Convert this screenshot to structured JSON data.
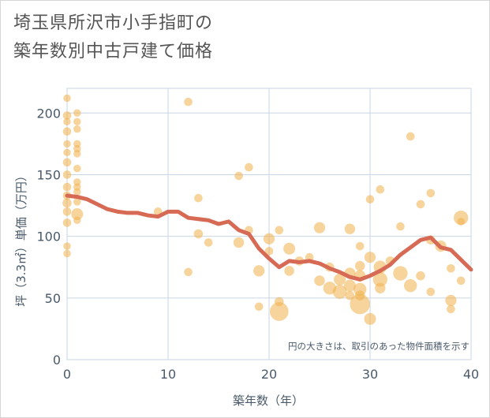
{
  "title": {
    "line1": "埼玉県所沢市小手指町の",
    "line2": "築年数別中古戸建て価格"
  },
  "chart_data": {
    "type": "scatter",
    "xlabel": "築年数（年）",
    "ylabel": "坪（3.3㎡）単価（万円）",
    "xlim": [
      0,
      40
    ],
    "ylim": [
      0,
      220
    ],
    "xticks": [
      "0",
      "10",
      "20",
      "30",
      "40"
    ],
    "yticks": [
      "0",
      "50",
      "100",
      "150",
      "200"
    ],
    "grid": true,
    "note": "円の大きさは、取引のあった物件面積を示す",
    "colors": {
      "bubble": "#F0B04A",
      "trend": "#D66A55",
      "grid": "#c9d6e3",
      "axis_text": "#4a5a6a"
    },
    "bubbles": [
      {
        "x": 0,
        "y": 212,
        "s": 0.4
      },
      {
        "x": 0,
        "y": 198,
        "s": 0.5
      },
      {
        "x": 0,
        "y": 193,
        "s": 0.4
      },
      {
        "x": 0,
        "y": 185,
        "s": 0.5
      },
      {
        "x": 0,
        "y": 175,
        "s": 0.4
      },
      {
        "x": 0,
        "y": 168,
        "s": 0.4
      },
      {
        "x": 0,
        "y": 160,
        "s": 0.5
      },
      {
        "x": 0,
        "y": 150,
        "s": 0.5
      },
      {
        "x": 0,
        "y": 140,
        "s": 0.5
      },
      {
        "x": 0,
        "y": 133,
        "s": 0.5
      },
      {
        "x": 0,
        "y": 127,
        "s": 0.6
      },
      {
        "x": 0,
        "y": 120,
        "s": 0.5
      },
      {
        "x": 0,
        "y": 111,
        "s": 0.5
      },
      {
        "x": 0,
        "y": 92,
        "s": 0.4
      },
      {
        "x": 0,
        "y": 86,
        "s": 0.4
      },
      {
        "x": 1,
        "y": 200,
        "s": 0.4
      },
      {
        "x": 1,
        "y": 193,
        "s": 0.4
      },
      {
        "x": 1,
        "y": 187,
        "s": 0.4
      },
      {
        "x": 1,
        "y": 175,
        "s": 0.4
      },
      {
        "x": 1,
        "y": 171,
        "s": 0.4
      },
      {
        "x": 1,
        "y": 167,
        "s": 0.4
      },
      {
        "x": 1,
        "y": 155,
        "s": 0.4
      },
      {
        "x": 1,
        "y": 144,
        "s": 0.4
      },
      {
        "x": 1,
        "y": 140,
        "s": 0.4
      },
      {
        "x": 1,
        "y": 136,
        "s": 0.4
      },
      {
        "x": 1,
        "y": 128,
        "s": 0.4
      },
      {
        "x": 1,
        "y": 118,
        "s": 1.0
      },
      {
        "x": 1,
        "y": 113,
        "s": 0.4
      },
      {
        "x": 9,
        "y": 120,
        "s": 0.5
      },
      {
        "x": 12,
        "y": 209,
        "s": 0.5
      },
      {
        "x": 12,
        "y": 71,
        "s": 0.5
      },
      {
        "x": 13,
        "y": 131,
        "s": 0.5
      },
      {
        "x": 13,
        "y": 102,
        "s": 0.6
      },
      {
        "x": 14,
        "y": 95,
        "s": 0.5
      },
      {
        "x": 17,
        "y": 149,
        "s": 0.5
      },
      {
        "x": 17,
        "y": 95,
        "s": 0.8
      },
      {
        "x": 18,
        "y": 156,
        "s": 0.5
      },
      {
        "x": 18,
        "y": 105,
        "s": 0.5
      },
      {
        "x": 19,
        "y": 72,
        "s": 0.9
      },
      {
        "x": 19,
        "y": 43,
        "s": 0.5
      },
      {
        "x": 20,
        "y": 98,
        "s": 0.9
      },
      {
        "x": 20,
        "y": 88,
        "s": 0.5
      },
      {
        "x": 21,
        "y": 105,
        "s": 0.5
      },
      {
        "x": 21,
        "y": 47,
        "s": 0.6
      },
      {
        "x": 21,
        "y": 39,
        "s": 2.5
      },
      {
        "x": 22,
        "y": 90,
        "s": 1.0
      },
      {
        "x": 22,
        "y": 72,
        "s": 0.7
      },
      {
        "x": 23,
        "y": 80,
        "s": 0.6
      },
      {
        "x": 24,
        "y": 83,
        "s": 0.5
      },
      {
        "x": 25,
        "y": 107,
        "s": 0.9
      },
      {
        "x": 25,
        "y": 64,
        "s": 0.8
      },
      {
        "x": 26,
        "y": 75,
        "s": 0.6
      },
      {
        "x": 26,
        "y": 58,
        "s": 1.2
      },
      {
        "x": 27,
        "y": 65,
        "s": 1.0
      },
      {
        "x": 27,
        "y": 55,
        "s": 1.4
      },
      {
        "x": 28,
        "y": 106,
        "s": 0.8
      },
      {
        "x": 28,
        "y": 70,
        "s": 0.9
      },
      {
        "x": 28,
        "y": 60,
        "s": 1.0
      },
      {
        "x": 28,
        "y": 52,
        "s": 0.6
      },
      {
        "x": 29,
        "y": 76,
        "s": 0.7
      },
      {
        "x": 29,
        "y": 68,
        "s": 0.9
      },
      {
        "x": 29,
        "y": 57,
        "s": 1.2
      },
      {
        "x": 29,
        "y": 52,
        "s": 0.7
      },
      {
        "x": 29,
        "y": 92,
        "s": 0.5
      },
      {
        "x": 29,
        "y": 45,
        "s": 2.9
      },
      {
        "x": 30,
        "y": 130,
        "s": 0.5
      },
      {
        "x": 30,
        "y": 83,
        "s": 0.9
      },
      {
        "x": 30,
        "y": 33,
        "s": 1.0
      },
      {
        "x": 31,
        "y": 138,
        "s": 0.5
      },
      {
        "x": 31,
        "y": 75,
        "s": 1.2
      },
      {
        "x": 31,
        "y": 65,
        "s": 1.5
      },
      {
        "x": 31,
        "y": 58,
        "s": 0.8
      },
      {
        "x": 32,
        "y": 80,
        "s": 0.6
      },
      {
        "x": 33,
        "y": 108,
        "s": 0.5
      },
      {
        "x": 33,
        "y": 70,
        "s": 1.5
      },
      {
        "x": 34,
        "y": 181,
        "s": 0.5
      },
      {
        "x": 34,
        "y": 60,
        "s": 1.2
      },
      {
        "x": 35,
        "y": 126,
        "s": 0.5
      },
      {
        "x": 35,
        "y": 68,
        "s": 0.6
      },
      {
        "x": 36,
        "y": 135,
        "s": 0.5
      },
      {
        "x": 36,
        "y": 97,
        "s": 0.6
      },
      {
        "x": 36,
        "y": 55,
        "s": 0.5
      },
      {
        "x": 37,
        "y": 92,
        "s": 0.9
      },
      {
        "x": 38,
        "y": 74,
        "s": 0.5
      },
      {
        "x": 38,
        "y": 48,
        "s": 0.9
      },
      {
        "x": 38,
        "y": 41,
        "s": 0.5
      },
      {
        "x": 39,
        "y": 115,
        "s": 1.5
      },
      {
        "x": 39,
        "y": 112,
        "s": 0.4
      },
      {
        "x": 39,
        "y": 64,
        "s": 0.5
      }
    ],
    "trend": {
      "x": [
        0,
        1,
        2,
        3,
        4,
        5,
        6,
        7,
        8,
        9,
        10,
        11,
        12,
        13,
        14,
        15,
        16,
        17,
        18,
        19,
        20,
        21,
        22,
        23,
        24,
        25,
        26,
        27,
        28,
        29,
        30,
        31,
        32,
        33,
        34,
        35,
        36,
        37,
        38,
        39,
        40
      ],
      "y": [
        133,
        132,
        130,
        126,
        122,
        120,
        119,
        119,
        117,
        116,
        120,
        120,
        115,
        114,
        113,
        110,
        112,
        105,
        102,
        90,
        82,
        75,
        80,
        79,
        80,
        78,
        74,
        71,
        67,
        65,
        68,
        72,
        77,
        85,
        91,
        97,
        99,
        91,
        89,
        81,
        73
      ]
    }
  }
}
